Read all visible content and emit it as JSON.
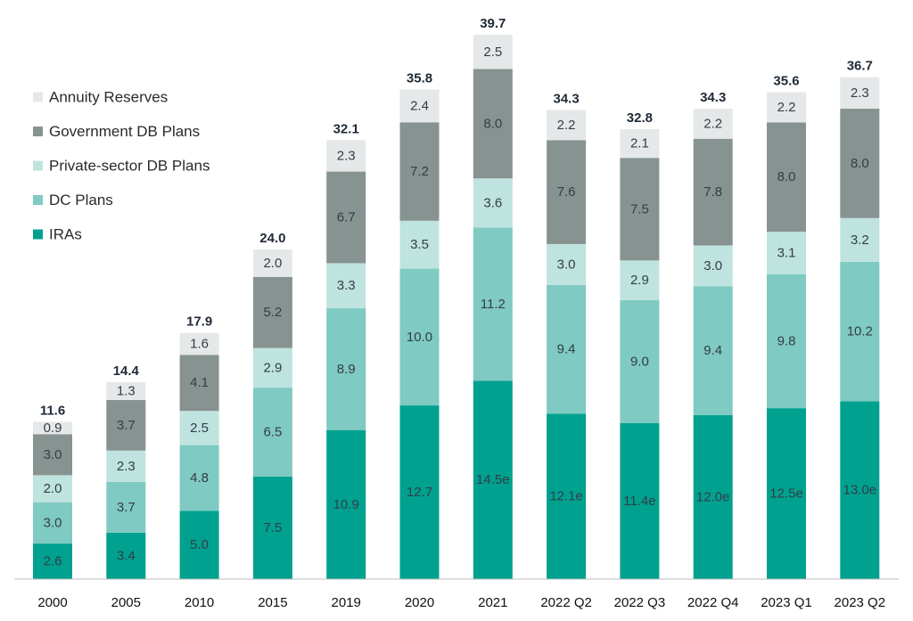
{
  "chart_data": {
    "type": "bar",
    "stacked": true,
    "categories": [
      "2000",
      "2005",
      "2010",
      "2015",
      "2019",
      "2020",
      "2021",
      "2022 Q2",
      "2022 Q3",
      "2022 Q4",
      "2023 Q1",
      "2023 Q2"
    ],
    "series": [
      {
        "name": "IRAs",
        "color": "#00a18f",
        "values": [
          2.6,
          3.4,
          5.0,
          7.5,
          10.9,
          12.7,
          14.5,
          12.1,
          11.4,
          12.0,
          12.5,
          13.0
        ],
        "labels": [
          "2.6",
          "3.4",
          "5.0",
          "7.5",
          "10.9",
          "12.7",
          "14.5e",
          "12.1e",
          "11.4e",
          "12.0e",
          "12.5e",
          "13.0e"
        ]
      },
      {
        "name": "DC Plans",
        "color": "#7fcac2",
        "values": [
          3.0,
          3.7,
          4.8,
          6.5,
          8.9,
          10.0,
          11.2,
          9.4,
          9.0,
          9.4,
          9.8,
          10.2
        ],
        "labels": [
          "3.0",
          "3.7",
          "4.8",
          "6.5",
          "8.9",
          "10.0",
          "11.2",
          "9.4",
          "9.0",
          "9.4",
          "9.8",
          "10.2"
        ]
      },
      {
        "name": "Private-sector DB Plans",
        "color": "#bfe3df",
        "values": [
          2.0,
          2.3,
          2.5,
          2.9,
          3.3,
          3.5,
          3.6,
          3.0,
          2.9,
          3.0,
          3.1,
          3.2
        ],
        "labels": [
          "2.0",
          "2.3",
          "2.5",
          "2.9",
          "3.3",
          "3.5",
          "3.6",
          "3.0",
          "2.9",
          "3.0",
          "3.1",
          "3.2"
        ]
      },
      {
        "name": "Government DB Plans",
        "color": "#879391",
        "values": [
          3.0,
          3.7,
          4.1,
          5.2,
          6.7,
          7.2,
          8.0,
          7.6,
          7.5,
          7.8,
          8.0,
          8.0
        ],
        "labels": [
          "3.0",
          "3.7",
          "4.1",
          "5.2",
          "6.7",
          "7.2",
          "8.0",
          "7.6",
          "7.5",
          "7.8",
          "8.0",
          "8.0"
        ]
      },
      {
        "name": "Annuity Reserves",
        "color": "#e5e8e8",
        "values": [
          0.9,
          1.3,
          1.6,
          2.0,
          2.3,
          2.4,
          2.5,
          2.2,
          2.1,
          2.2,
          2.2,
          2.3
        ],
        "labels": [
          "0.9",
          "1.3",
          "1.6",
          "2.0",
          "2.3",
          "2.4",
          "2.5",
          "2.2",
          "2.1",
          "2.2",
          "2.2",
          "2.3"
        ]
      }
    ],
    "totals": [
      "11.6",
      "14.4",
      "17.9",
      "24.0",
      "32.1",
      "35.8",
      "39.7",
      "34.3",
      "32.8",
      "34.3",
      "35.6",
      "36.7"
    ],
    "ylim": [
      0,
      40
    ],
    "grid": false,
    "legend_position": "top-left",
    "legend_order": [
      "Annuity Reserves",
      "Government DB Plans",
      "Private-sector DB Plans",
      "DC Plans",
      "IRAs"
    ]
  }
}
